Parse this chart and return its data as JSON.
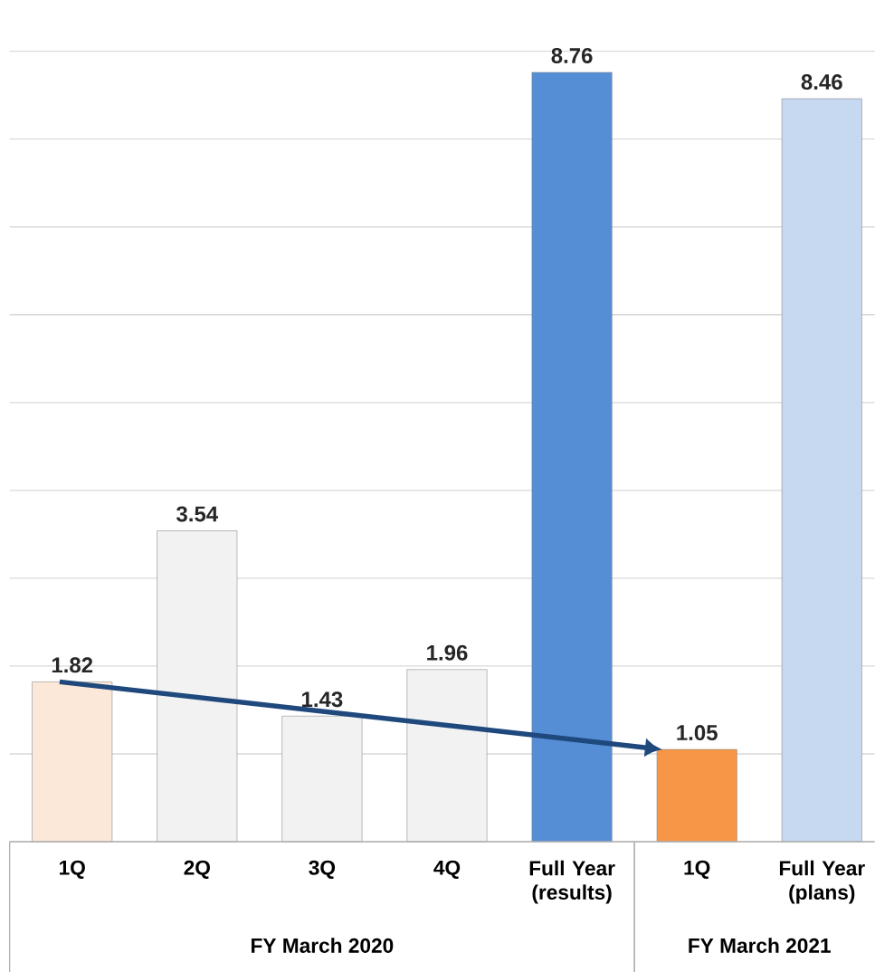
{
  "chart_data": {
    "type": "bar",
    "categories": [
      "1Q",
      "2Q",
      "3Q",
      "4Q",
      "Full Year (results)",
      "1Q",
      "Full Year (plans)"
    ],
    "values": [
      1.82,
      3.54,
      1.43,
      1.96,
      8.76,
      1.05,
      8.46
    ],
    "colors": [
      "#fce8d8",
      "#f2f2f2",
      "#f2f2f2",
      "#f2f2f2",
      "#558ed5",
      "#f79646",
      "#c6d9f1"
    ],
    "ylim": [
      0,
      9
    ],
    "yticks": [
      {
        "value": 0,
        "label": null
      },
      {
        "value": 1,
        "label": null
      },
      {
        "value": 2,
        "label": null
      },
      {
        "value": 3,
        "label": null
      },
      {
        "value": 4,
        "label": null
      },
      {
        "value": 5,
        "label": null
      },
      {
        "value": 6,
        "label": null
      },
      {
        "value": 7,
        "label": null
      },
      {
        "value": 8,
        "label": null
      },
      {
        "value": 9,
        "label": null
      }
    ],
    "tick_labels": "x",
    "grid": "y",
    "data_labels": true,
    "annotations": [
      "FY March 2020",
      "FY March 2021"
    ]
  }
}
